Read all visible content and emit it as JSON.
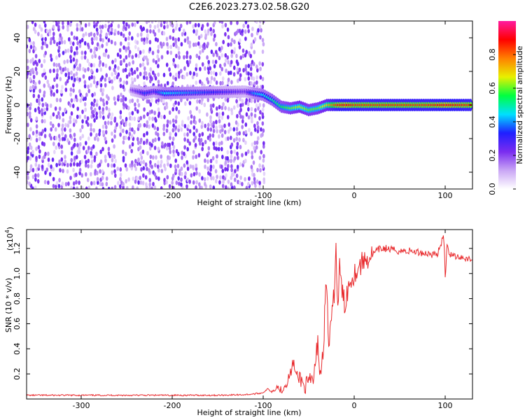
{
  "title": "C2E6.2023.273.02.58.G20",
  "chart_data": [
    {
      "type": "heatmap",
      "xlabel": "Height of straight line (km)",
      "ylabel": "Frequency (Hz)",
      "xlim": [
        -360,
        130
      ],
      "ylim": [
        -50,
        50
      ],
      "xticks": [
        -300,
        -200,
        -100,
        0,
        100
      ],
      "yticks": [
        -40,
        -20,
        0,
        20,
        40
      ],
      "colorbar": {
        "label": "Normalized spectral amplitude",
        "range": [
          0.0,
          1.0
        ],
        "ticks": [
          0.0,
          0.2,
          0.4,
          0.6,
          0.8
        ],
        "colormap": [
          "#ffffff",
          "#c9a6f5",
          "#7a2cf0",
          "#1f1fff",
          "#00e0ff",
          "#00ff40",
          "#e8f000",
          "#ff8000",
          "#ff0000",
          "#ff1aa0"
        ]
      },
      "noise_region": {
        "x": [
          -360,
          -100
        ],
        "y": [
          -50,
          50
        ],
        "amplitude": 0.15
      },
      "tone_track": [
        {
          "x": -245,
          "y": 9,
          "amplitude": 0.2
        },
        {
          "x": -230,
          "y": 7,
          "amplitude": 0.35
        },
        {
          "x": -220,
          "y": 8,
          "amplitude": 0.3
        },
        {
          "x": -208,
          "y": 7,
          "amplitude": 0.45
        },
        {
          "x": -120,
          "y": 8,
          "amplitude": 0.25
        },
        {
          "x": -110,
          "y": 7,
          "amplitude": 0.4
        },
        {
          "x": -100,
          "y": 6,
          "amplitude": 0.45
        },
        {
          "x": -90,
          "y": 3,
          "amplitude": 0.5
        },
        {
          "x": -80,
          "y": -1,
          "amplitude": 0.55
        },
        {
          "x": -70,
          "y": -2,
          "amplitude": 0.6
        },
        {
          "x": -60,
          "y": -1,
          "amplitude": 0.65
        },
        {
          "x": -50,
          "y": -3,
          "amplitude": 0.6
        },
        {
          "x": -40,
          "y": -2,
          "amplitude": 0.6
        },
        {
          "x": -30,
          "y": 0,
          "amplitude": 0.7
        },
        {
          "x": -20,
          "y": 0,
          "amplitude": 0.85
        },
        {
          "x": -10,
          "y": 0,
          "amplitude": 0.9
        },
        {
          "x": 0,
          "y": 0,
          "amplitude": 0.85
        },
        {
          "x": 20,
          "y": 0,
          "amplitude": 0.85
        },
        {
          "x": 40,
          "y": 0,
          "amplitude": 0.85
        },
        {
          "x": 60,
          "y": 0,
          "amplitude": 0.85
        },
        {
          "x": 80,
          "y": 0,
          "amplitude": 0.85
        },
        {
          "x": 100,
          "y": 0,
          "amplitude": 0.9
        },
        {
          "x": 130,
          "y": 0,
          "amplitude": 0.85
        }
      ]
    },
    {
      "type": "line",
      "xlabel": "Height of straight line (km)",
      "ylabel": "SNR (10 * v/v)",
      "yscale_label": "(x10",
      "yscale_exponent": "4",
      "xlim": [
        -360,
        130
      ],
      "ylim": [
        0.0,
        1.35
      ],
      "xticks": [
        -300,
        -200,
        -100,
        0,
        100
      ],
      "yticks": [
        0.2,
        0.4,
        0.6,
        0.8,
        1.0,
        1.2
      ],
      "series_color": "#e8282b",
      "x": [
        -360,
        -300,
        -250,
        -200,
        -150,
        -120,
        -110,
        -100,
        -95,
        -90,
        -85,
        -80,
        -75,
        -70,
        -67,
        -65,
        -62,
        -60,
        -55,
        -50,
        -45,
        -42,
        -40,
        -38,
        -35,
        -33,
        -32,
        -30,
        -28,
        -25,
        -22,
        -20,
        -18,
        -16,
        -14,
        -12,
        -10,
        -8,
        -6,
        -4,
        -2,
        0,
        5,
        10,
        15,
        20,
        25,
        30,
        35,
        40,
        50,
        60,
        70,
        80,
        90,
        95,
        98,
        99,
        100,
        101,
        102,
        105,
        110,
        120,
        130
      ],
      "values": [
        0.03,
        0.03,
        0.03,
        0.03,
        0.03,
        0.035,
        0.04,
        0.05,
        0.08,
        0.06,
        0.1,
        0.07,
        0.12,
        0.2,
        0.3,
        0.22,
        0.15,
        0.18,
        0.1,
        0.12,
        0.15,
        0.3,
        0.5,
        0.2,
        0.3,
        0.55,
        0.8,
        0.9,
        0.4,
        0.6,
        0.85,
        1.2,
        0.7,
        1.05,
        0.9,
        0.8,
        0.75,
        0.85,
        0.9,
        0.95,
        0.98,
        1.0,
        1.05,
        1.1,
        1.12,
        1.15,
        1.18,
        1.2,
        1.2,
        1.19,
        1.18,
        1.18,
        1.17,
        1.16,
        1.15,
        1.2,
        1.32,
        1.22,
        0.95,
        1.1,
        1.25,
        1.15,
        1.14,
        1.13,
        1.11
      ]
    }
  ]
}
